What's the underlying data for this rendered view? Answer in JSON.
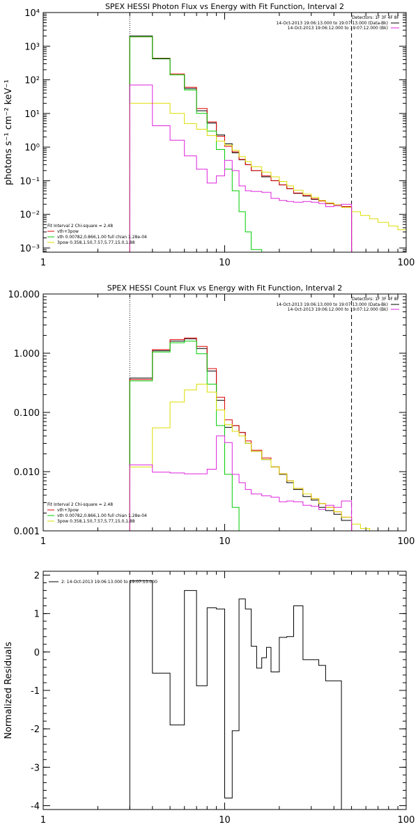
{
  "chart_data": [
    {
      "type": "line",
      "title": "SPEX HESSI Photon Flux vs Energy with Fit Function, Interval 2",
      "ylabel": "photons s⁻¹ cm⁻² keV⁻¹",
      "xlabel": "",
      "xscale": "log",
      "yscale": "log",
      "xlim": [
        1,
        100
      ],
      "ylim": [
        0.00075,
        10000
      ],
      "xticks": [
        1,
        10,
        100
      ],
      "xtick_labels": [
        "1",
        "10",
        "100"
      ],
      "yticks": [
        0.001,
        0.01,
        0.1,
        1,
        10,
        100,
        1000,
        10000
      ],
      "ytick_labels": [
        "10⁻³",
        "10⁻²",
        "10⁻¹",
        "10⁰",
        "10¹",
        "10²",
        "10³",
        "10⁴"
      ],
      "vlines": [
        {
          "x": 3,
          "style": "dotted",
          "color": "#000000"
        },
        {
          "x": 50,
          "style": "dashed",
          "color": "#000000"
        }
      ],
      "info_right": {
        "title": "Detectors: 1F 3F 4F 8F",
        "lines": [
          {
            "text": "14-Oct-2013 19:06:13.000 to 19:07:13.000 (Data-Bk)",
            "color": "#000000"
          },
          {
            "text": "14-Oct-2013 19:06:12.000 to 19:07:12.000 (Bk)",
            "color": "#dd22dd"
          }
        ]
      },
      "info_left": {
        "title": "Fit Interval 2   Chi-square = 2.48",
        "lines": [
          {
            "text": "vth+3pow",
            "color": "#dd0000"
          },
          {
            "text": "vth 0.00782,0.866,1.00  full chian 1.28e-04",
            "color": "#00cc00"
          },
          {
            "text": "3pow 0.358,1.50,7.57,5.77,15.0,1.88",
            "color": "#dddd00"
          }
        ]
      },
      "edges": [
        3,
        4,
        5,
        6,
        7,
        8,
        9,
        10,
        11,
        12,
        13,
        14,
        16,
        18,
        20,
        22,
        24,
        27,
        30,
        33,
        36,
        40,
        44,
        50,
        56,
        63,
        70,
        80,
        90,
        100
      ],
      "series": [
        {
          "name": "Data-Bk",
          "color": "#000000",
          "values": [
            2000,
            420,
            140,
            55,
            12,
            5.2,
            2.3,
            1.25,
            0.68,
            0.42,
            0.3,
            0.2,
            0.13,
            0.1,
            0.075,
            0.058,
            0.042,
            0.035,
            0.028,
            0.025,
            0.021,
            0.019,
            0.017,
            null,
            null,
            null,
            null,
            null,
            null
          ]
        },
        {
          "name": "vth+3pow",
          "color": "#dd0000",
          "values": [
            1900,
            440,
            150,
            60,
            14,
            5.6,
            2.1,
            1.05,
            0.72,
            0.43,
            0.3,
            0.2,
            0.14,
            0.1,
            0.075,
            0.058,
            0.043,
            0.036,
            0.029,
            0.025,
            0.021,
            0.019,
            0.017,
            null,
            null,
            null,
            null,
            null,
            null
          ]
        },
        {
          "name": "vth",
          "color": "#00cc00",
          "values": [
            1900,
            430,
            140,
            50,
            10,
            3.0,
            0.85,
            0.22,
            0.05,
            0.012,
            0.003,
            0.0009,
            0.0001,
            null,
            null,
            null,
            null,
            null,
            null,
            null,
            null,
            null,
            null,
            null,
            null,
            null,
            null,
            null,
            null
          ]
        },
        {
          "name": "3pow",
          "color": "#dddd00",
          "values": [
            20,
            20,
            10,
            5,
            3.4,
            2.2,
            1.5,
            1.15,
            0.8,
            0.52,
            0.37,
            0.26,
            0.18,
            0.13,
            0.095,
            0.07,
            0.052,
            0.04,
            0.032,
            0.026,
            0.022,
            0.019,
            0.016,
            0.012,
            0.0093,
            0.0074,
            0.0058,
            0.0045,
            0.0035
          ]
        },
        {
          "name": "Bk",
          "color": "#dd22dd",
          "values": [
            70,
            4.3,
            1.6,
            0.55,
            0.22,
            0.085,
            0.14,
            0.4,
            0.2,
            0.07,
            0.05,
            0.048,
            0.045,
            0.03,
            0.026,
            0.024,
            0.023,
            0.024,
            0.023,
            0.021,
            0.017,
            0.018,
            0.02,
            null,
            null,
            null,
            null,
            null,
            null
          ]
        }
      ]
    },
    {
      "type": "line",
      "title": "SPEX HESSI Count Flux vs Energy with Fit Function, Interval 2",
      "xlabel": "",
      "ylabel": "",
      "xscale": "log",
      "yscale": "log",
      "xlim": [
        1,
        100
      ],
      "ylim": [
        0.001,
        10
      ],
      "xticks": [
        1,
        10,
        100
      ],
      "xtick_labels": [
        "1",
        "10",
        "100"
      ],
      "yticks": [
        0.001,
        0.01,
        0.1,
        1,
        10
      ],
      "ytick_labels": [
        "0.001",
        "0.010",
        "0.100",
        "1.000",
        "10.000"
      ],
      "vlines": [
        {
          "x": 3,
          "style": "dotted",
          "color": "#000000"
        },
        {
          "x": 50,
          "style": "dashed",
          "color": "#000000"
        }
      ],
      "info_right": {
        "title": "Detectors: 1F 3F 4F 8F",
        "lines": [
          {
            "text": "14-Oct-2013 19:06:13.000 to 19:07:13.000 (Data-Bk)",
            "color": "#000000"
          },
          {
            "text": "14-Oct-2013 19:06:12.000 to 19:07:12.000 (Bk)",
            "color": "#dd22dd"
          }
        ]
      },
      "info_left": {
        "title": "Fit Interval 2   Chi-square = 2.48",
        "lines": [
          {
            "text": "vth+3pow",
            "color": "#dd0000"
          },
          {
            "text": "vth 0.00782,0.866,1.00  full chian 1.28e-04",
            "color": "#00cc00"
          },
          {
            "text": "3pow 0.358,1.50,7.57,5.77,15.0,1.88",
            "color": "#dddd00"
          }
        ]
      },
      "edges": [
        3,
        4,
        5,
        6,
        7,
        8,
        9,
        10,
        11,
        12,
        13,
        14,
        16,
        18,
        20,
        22,
        24,
        27,
        30,
        33,
        36,
        40,
        44,
        50,
        56,
        63,
        70,
        80,
        90,
        100
      ],
      "series": [
        {
          "name": "Data-Bk",
          "color": "#000000",
          "values": [
            0.38,
            1.1,
            1.6,
            1.75,
            1.2,
            0.5,
            0.16,
            0.056,
            0.06,
            0.046,
            0.03,
            0.022,
            0.016,
            0.012,
            0.009,
            0.0065,
            0.005,
            0.0038,
            0.0033,
            0.0025,
            0.0022,
            0.0019,
            0.0015,
            null,
            null,
            null,
            null,
            null,
            null
          ]
        },
        {
          "name": "vth+3pow",
          "color": "#dd0000",
          "values": [
            0.36,
            1.15,
            1.7,
            1.8,
            1.3,
            0.55,
            0.18,
            0.075,
            0.06,
            0.046,
            0.033,
            0.023,
            0.017,
            0.012,
            0.0092,
            0.007,
            0.0052,
            0.0042,
            0.0035,
            0.0029,
            0.0025,
            0.0021,
            0.0017,
            null,
            null,
            null,
            null,
            null,
            null
          ]
        },
        {
          "name": "vth",
          "color": "#00cc00",
          "values": [
            0.34,
            1.05,
            1.5,
            1.6,
            0.98,
            0.3,
            0.06,
            0.009,
            0.0025,
            0.0006,
            null,
            null,
            null,
            null,
            null,
            null,
            null,
            null,
            null,
            null,
            null,
            null,
            null,
            null,
            null,
            null,
            null,
            null,
            null
          ]
        },
        {
          "name": "3pow",
          "color": "#dddd00",
          "values": [
            0.012,
            0.055,
            0.15,
            0.24,
            0.3,
            0.22,
            0.11,
            0.062,
            0.048,
            0.04,
            0.03,
            0.022,
            0.016,
            0.012,
            0.0092,
            0.007,
            0.0052,
            0.0042,
            0.0035,
            0.0029,
            0.0025,
            0.0021,
            0.0017,
            0.0013,
            0.0011,
            0.0009,
            null,
            null,
            null
          ]
        },
        {
          "name": "Bk",
          "color": "#dd22dd",
          "values": [
            0.013,
            0.0098,
            0.0095,
            0.0092,
            0.0092,
            0.011,
            0.04,
            0.031,
            0.009,
            0.0065,
            0.005,
            0.0042,
            0.0039,
            0.0037,
            0.0031,
            0.0032,
            0.0031,
            0.0027,
            0.0026,
            0.0023,
            0.0027,
            0.0025,
            0.0032,
            null,
            null,
            null,
            null,
            null,
            null
          ]
        }
      ]
    },
    {
      "type": "line",
      "title": "",
      "xlabel": "",
      "ylabel": "Normalized Residuals",
      "xscale": "log",
      "yscale": "linear",
      "xlim": [
        1,
        100
      ],
      "ylim": [
        -4.1,
        2.1
      ],
      "xticks": [
        1,
        10,
        100
      ],
      "xtick_labels": [
        "1",
        "10",
        "100"
      ],
      "yticks": [
        -4,
        -3,
        -2,
        -1,
        0,
        1,
        2
      ],
      "ytick_labels": [
        "-4",
        "-3",
        "-2",
        "-1",
        "0",
        "1",
        "2"
      ],
      "legend": {
        "text": "2: 14-Oct-2013 19:06:13.000 to 19:07:13.000",
        "color": "#000000"
      },
      "edges": [
        3,
        4,
        5,
        6,
        7,
        8,
        9,
        10,
        11,
        12,
        13,
        14,
        15,
        16,
        17,
        18,
        20,
        22,
        24,
        27,
        30,
        33,
        36,
        40,
        44,
        50
      ],
      "series": [
        {
          "name": "residuals",
          "color": "#000000",
          "values": [
            1.85,
            -0.55,
            -1.9,
            1.6,
            -0.88,
            1.15,
            1.12,
            -3.8,
            -2.05,
            1.38,
            1.12,
            0.15,
            -0.42,
            -0.15,
            0.12,
            -0.52,
            0.38,
            0.4,
            1.2,
            -0.2,
            -0.2,
            -0.35,
            -0.75,
            -0.75,
            null
          ]
        }
      ]
    }
  ]
}
